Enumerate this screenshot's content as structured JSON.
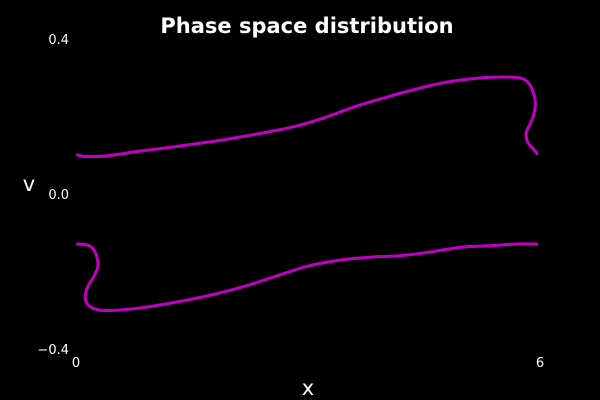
{
  "chart_data": {
    "type": "line",
    "title": "Phase space distribution",
    "xlabel": "x",
    "ylabel": "v",
    "xlim": [
      0,
      6
    ],
    "ylim": [
      -0.4,
      0.4
    ],
    "x_ticks": [
      "0",
      "6"
    ],
    "y_ticks": [
      "0.4",
      "0.0",
      "−0.4"
    ],
    "y_tick_values": [
      0.4,
      0.0,
      -0.4
    ],
    "x_tick_values": [
      0,
      6
    ],
    "grid": false,
    "series_color": "#c000c0",
    "background_color": "#000000",
    "series": [
      {
        "x": [
          0.02,
          0.1,
          0.3,
          0.5,
          0.8,
          1.2,
          1.6,
          2.0,
          2.4,
          2.8,
          3.2,
          3.6,
          4.0,
          4.4,
          4.8,
          5.2,
          5.5,
          5.75,
          5.85,
          5.91,
          5.94,
          5.92,
          5.87,
          5.82,
          5.84,
          5.9,
          5.96
        ],
        "y": [
          0.101,
          0.097,
          0.097,
          0.101,
          0.11,
          0.12,
          0.131,
          0.143,
          0.157,
          0.173,
          0.196,
          0.225,
          0.249,
          0.271,
          0.289,
          0.299,
          0.302,
          0.299,
          0.287,
          0.263,
          0.235,
          0.205,
          0.18,
          0.157,
          0.134,
          0.119,
          0.105
        ]
      },
      {
        "x": [
          5.96,
          5.7,
          5.4,
          5.0,
          4.6,
          4.2,
          3.8,
          3.4,
          3.0,
          2.6,
          2.2,
          1.8,
          1.4,
          1.0,
          0.7,
          0.4,
          0.25,
          0.15,
          0.12,
          0.15,
          0.22,
          0.28,
          0.27,
          0.2,
          0.1,
          0.02
        ],
        "y": [
          -0.129,
          -0.129,
          -0.133,
          -0.137,
          -0.149,
          -0.159,
          -0.163,
          -0.171,
          -0.186,
          -0.211,
          -0.237,
          -0.258,
          -0.275,
          -0.289,
          -0.297,
          -0.301,
          -0.297,
          -0.285,
          -0.266,
          -0.24,
          -0.216,
          -0.19,
          -0.162,
          -0.137,
          -0.13,
          -0.129
        ]
      }
    ]
  }
}
